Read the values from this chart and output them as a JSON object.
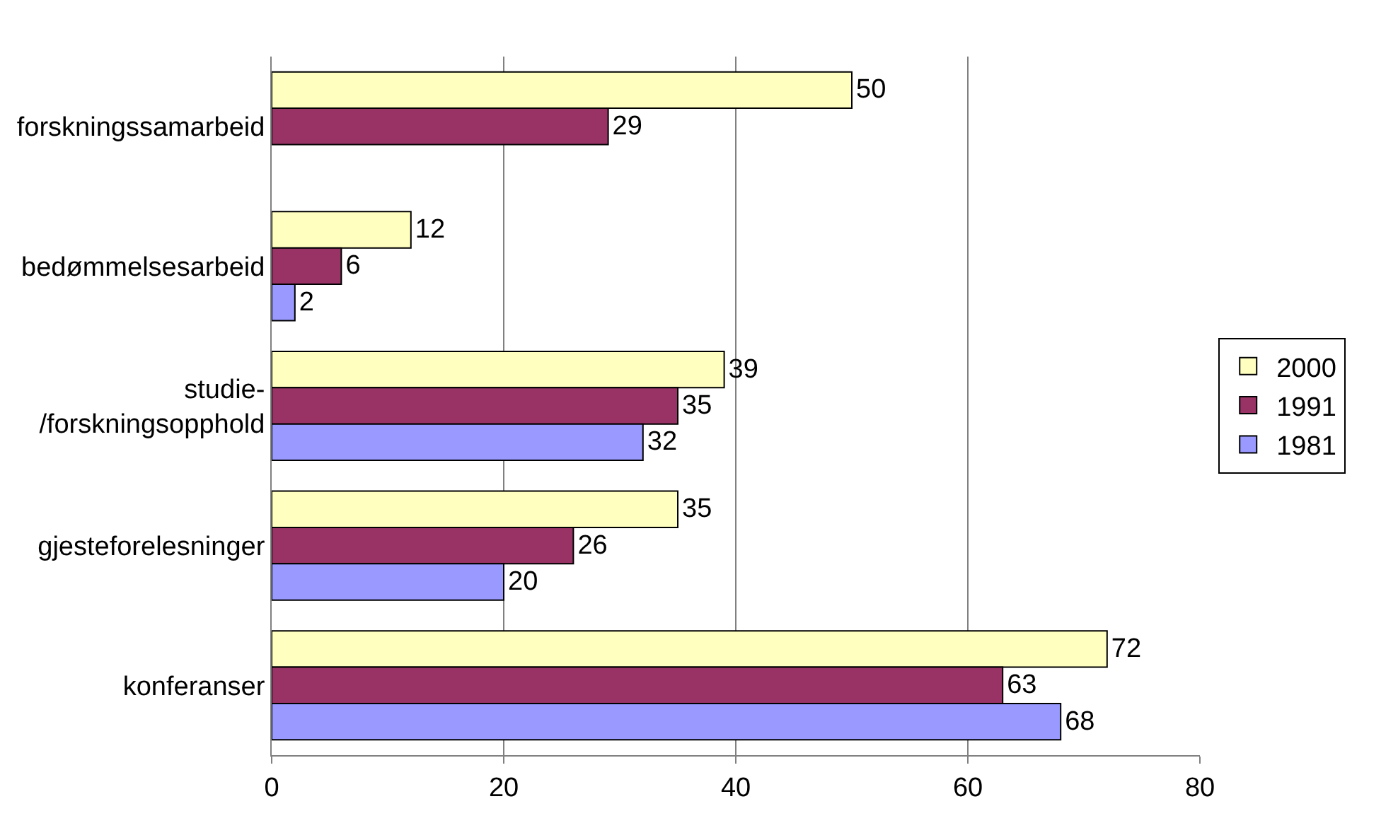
{
  "chart_data": {
    "type": "bar",
    "orientation": "horizontal",
    "categories": [
      "forskningssamarbeid",
      "bedømmelsesarbeid",
      "studie-\n/forskningsopphold",
      "gjesteforelesninger",
      "konferanser"
    ],
    "series": [
      {
        "name": "2000",
        "color": "#ffffc0",
        "values": [
          50,
          12,
          39,
          35,
          72
        ]
      },
      {
        "name": "1991",
        "color": "#993366",
        "values": [
          29,
          6,
          35,
          26,
          63
        ]
      },
      {
        "name": "1981",
        "color": "#9999ff",
        "values": [
          null,
          2,
          32,
          20,
          68
        ]
      }
    ],
    "xlim": [
      0,
      80
    ],
    "xticks": [
      0,
      20,
      40,
      60,
      80
    ],
    "grid": "x",
    "legend": "right",
    "data_labels": true
  }
}
